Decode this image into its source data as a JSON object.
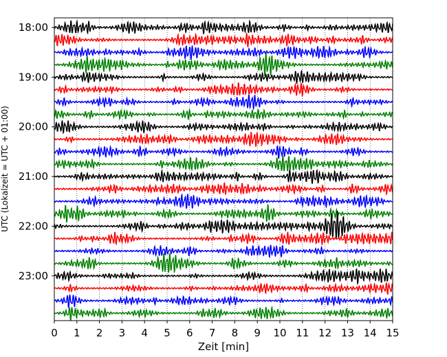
{
  "chart_data": {
    "type": "line",
    "title": "",
    "xlabel": "Zeit  [min]",
    "ylabel": "UTC (Lokalzeit = UTC + 01:00)",
    "xlim": [
      0,
      15
    ],
    "x_ticks": [
      "0",
      "1",
      "2",
      "3",
      "4",
      "5",
      "6",
      "7",
      "8",
      "9",
      "10",
      "11",
      "12",
      "13",
      "14",
      "15"
    ],
    "y_ticks": [
      "18:00",
      "19:00",
      "20:00",
      "21:00",
      "22:00",
      "23:00"
    ],
    "grid": "vertical dotted",
    "trace_interval_minutes": 15,
    "trace_start": "18:00",
    "trace_count": 24,
    "trace_colors": [
      "#000000",
      "#ff0000",
      "#0000ff",
      "#008000"
    ]
  }
}
